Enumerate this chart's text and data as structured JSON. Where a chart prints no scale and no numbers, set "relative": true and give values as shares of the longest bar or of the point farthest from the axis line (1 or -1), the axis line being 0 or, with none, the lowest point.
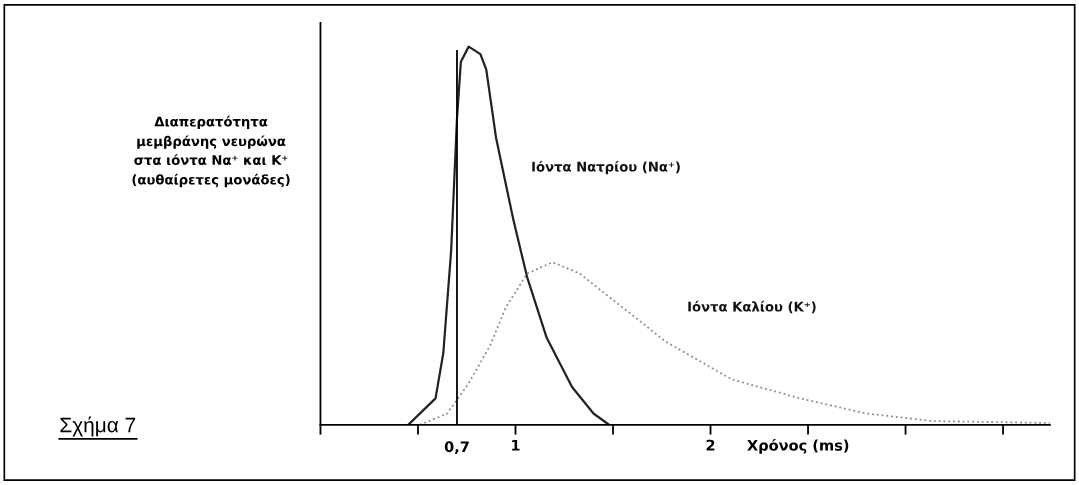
{
  "chart_data": {
    "type": "line",
    "relative": true,
    "ylabel": "Διαπερατότητα\nμεμβράνης νευρώνα\nστα ιόντα Να⁺ και Κ⁺\n(αυθαίρετες μονάδες)",
    "xlabel": "Χρόνος (ms)",
    "xlim": [
      0,
      3.74
    ],
    "xticks": [
      {
        "value": 0,
        "label": null
      },
      {
        "value": 0.5,
        "label": null
      },
      1,
      {
        "value": 1.5,
        "label": null
      },
      2,
      {
        "value": 2.5,
        "label": null
      },
      {
        "value": 3,
        "label": null
      },
      {
        "value": 3.5,
        "label": null
      }
    ],
    "tick_labels": "x",
    "grid": false,
    "legend": false,
    "series": [
      {
        "name": "Ιόντα Νατρίου (Να⁺)",
        "color": "#222222",
        "line_style": "solid",
        "x": [
          0.45,
          0.59,
          0.63,
          0.67,
          0.7,
          0.72,
          0.76,
          0.82,
          0.85,
          0.9,
          0.99,
          1.06,
          1.16,
          1.29,
          1.4,
          1.48
        ],
        "values": [
          0,
          0.07,
          0.19,
          0.46,
          0.81,
          0.96,
          1.0,
          0.98,
          0.94,
          0.76,
          0.54,
          0.39,
          0.23,
          0.1,
          0.03,
          0
        ]
      },
      {
        "name": "Ιόντα Καλίου (Κ⁺)",
        "color": "#8a8a8a",
        "line_style": "dotted",
        "x": [
          0.51,
          0.65,
          0.76,
          0.87,
          0.95,
          1.06,
          1.19,
          1.33,
          1.5,
          1.6,
          1.77,
          2.11,
          2.46,
          2.8,
          3.14,
          3.74
        ],
        "values": [
          0,
          0.03,
          0.11,
          0.21,
          0.31,
          0.4,
          0.43,
          0.4,
          0.33,
          0.29,
          0.22,
          0.12,
          0.07,
          0.03,
          0.01,
          0.005
        ]
      }
    ],
    "ref_lines": [
      {
        "axis": "x",
        "value": 0.7,
        "label": "0,7",
        "color": "#000000",
        "line_style": "solid"
      }
    ],
    "annotations": [
      "Σχήμα 7"
    ]
  }
}
